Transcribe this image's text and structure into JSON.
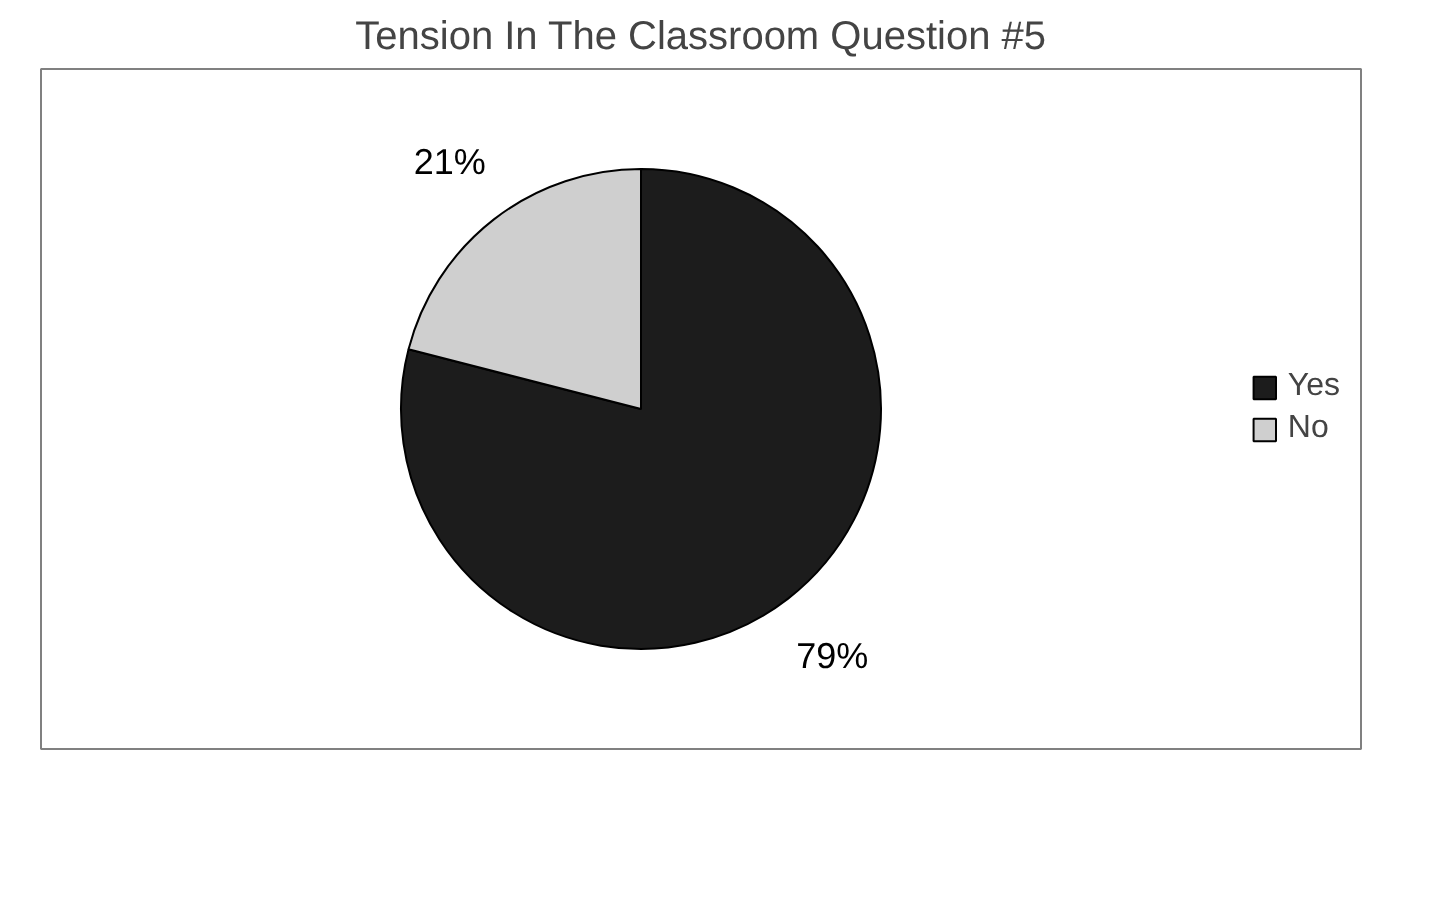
{
  "chart_data": {
    "type": "pie",
    "title": "Tension In The Classroom Question #5",
    "categories": [
      "Yes",
      "No"
    ],
    "values": [
      79,
      21
    ],
    "value_labels": [
      "79%",
      "21%"
    ],
    "colors": [
      "#1c1c1c",
      "#cfcfcf"
    ],
    "legend": "right"
  }
}
